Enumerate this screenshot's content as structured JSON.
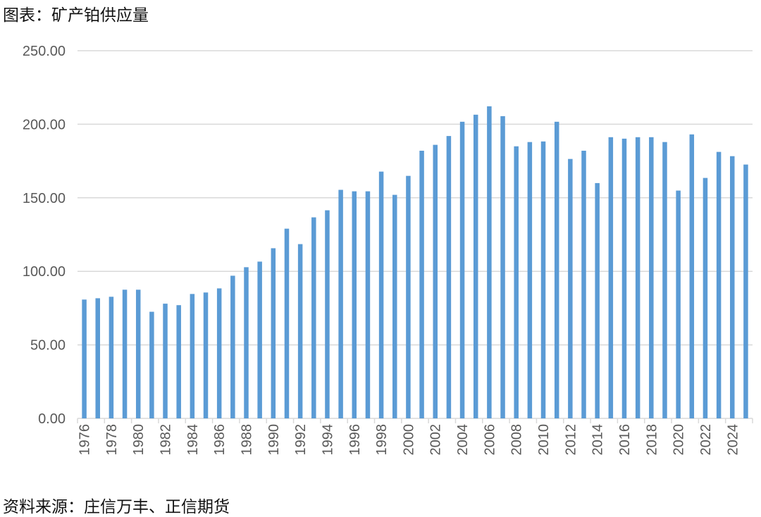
{
  "title": "图表：矿产铂供应量",
  "source": "资料来源：庄信万丰、正信期货",
  "chart_data": {
    "type": "bar",
    "title": "图表：矿产铂供应量",
    "xlabel": "",
    "ylabel": "",
    "ylim": [
      0,
      250
    ],
    "yticks": [
      "0.00",
      "50.00",
      "100.00",
      "150.00",
      "200.00",
      "250.00"
    ],
    "grid": true,
    "color": "#5b9bd5",
    "categories": [
      "1976",
      "1977",
      "1978",
      "1979",
      "1980",
      "1981",
      "1982",
      "1983",
      "1984",
      "1985",
      "1986",
      "1987",
      "1988",
      "1989",
      "1990",
      "1991",
      "1992",
      "1993",
      "1994",
      "1995",
      "1996",
      "1997",
      "1998",
      "1999",
      "2000",
      "2001",
      "2002",
      "2003",
      "2004",
      "2005",
      "2006",
      "2007",
      "2008",
      "2009",
      "2010",
      "2011",
      "2012",
      "2013",
      "2014",
      "2015",
      "2016",
      "2017",
      "2018",
      "2019",
      "2020",
      "2021",
      "2022",
      "2023",
      "2024",
      "2025"
    ],
    "xtick_labels": [
      "1976",
      "1978",
      "1980",
      "1982",
      "1984",
      "1986",
      "1988",
      "1990",
      "1992",
      "1994",
      "1996",
      "1998",
      "2000",
      "2002",
      "2004",
      "2006",
      "2008",
      "2010",
      "2012",
      "2014",
      "2016",
      "2018",
      "2020",
      "2022",
      "2024"
    ],
    "values": [
      80.8,
      81.7,
      82.7,
      87.5,
      87.5,
      72.5,
      78,
      77,
      84.6,
      85.6,
      88.4,
      97,
      102.8,
      106.6,
      115.7,
      129,
      118.5,
      136.7,
      141.5,
      155.4,
      154.4,
      154.4,
      167.8,
      152,
      164.9,
      182,
      186,
      192,
      201.7,
      206.5,
      212.2,
      205.5,
      185,
      187.9,
      188.3,
      201.7,
      176.4,
      182,
      160,
      191.2,
      190.2,
      191.2,
      191.2,
      187.9,
      154.9,
      193.1,
      163.5,
      181.2,
      178.3,
      172.6
    ]
  }
}
